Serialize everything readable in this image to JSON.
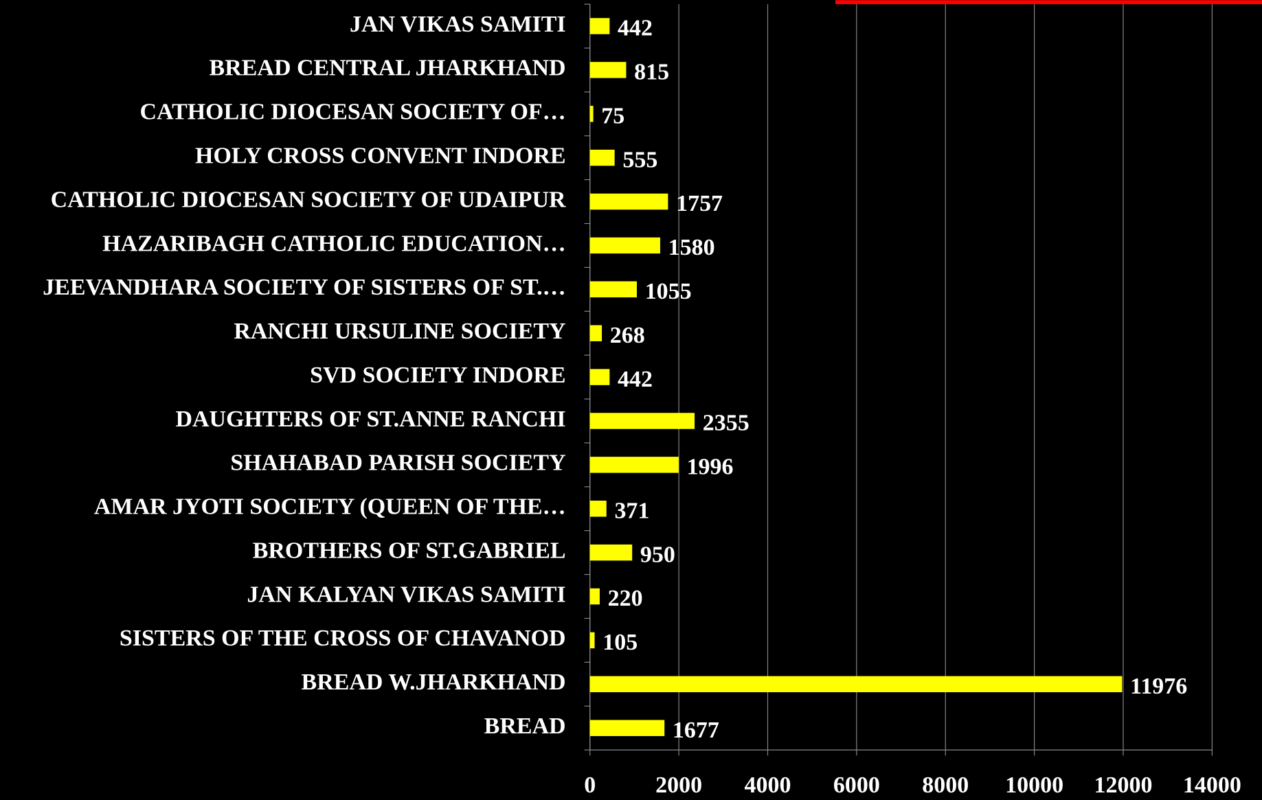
{
  "chart_data": {
    "type": "bar",
    "orientation": "horizontal",
    "categories": [
      "JAN VIKAS SAMITI",
      "BREAD CENTRAL JHARKHAND",
      "CATHOLIC DIOCESAN SOCIETY OF…",
      "HOLY CROSS CONVENT INDORE",
      "CATHOLIC DIOCESAN SOCIETY OF UDAIPUR",
      "HAZARIBAGH CATHOLIC EDUCATION…",
      "JEEVANDHARA SOCIETY OF SISTERS OF ST.…",
      "RANCHI URSULINE SOCIETY",
      "SVD SOCIETY  INDORE",
      "DAUGHTERS OF ST.ANNE RANCHI",
      "SHAHABAD PARISH SOCIETY",
      "AMAR JYOTI SOCIETY (QUEEN OF THE…",
      "BROTHERS OF ST.GABRIEL",
      "JAN KALYAN VIKAS SAMITI",
      "SISTERS OF THE CROSS OF CHAVANOD",
      "BREAD W.JHARKHAND",
      "BREAD"
    ],
    "values": [
      442,
      815,
      75,
      555,
      1757,
      1580,
      1055,
      268,
      442,
      2355,
      1996,
      371,
      950,
      220,
      105,
      11976,
      1677
    ],
    "color": "#ffff00",
    "xlim": [
      0,
      14000
    ],
    "xticks": [
      0,
      2000,
      4000,
      6000,
      8000,
      10000,
      12000,
      14000
    ],
    "grid": true
  }
}
